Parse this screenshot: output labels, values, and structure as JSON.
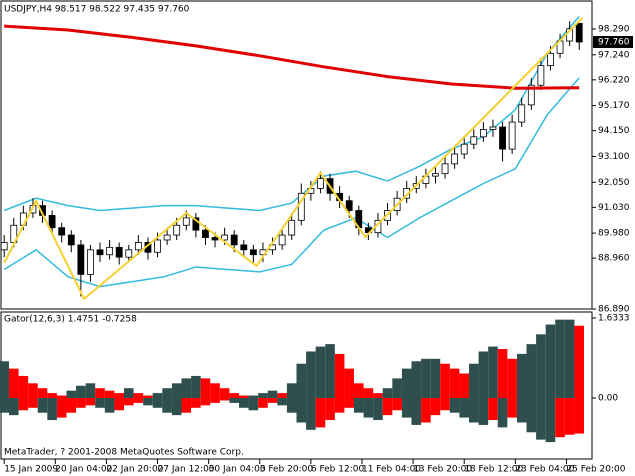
{
  "chart_data": [
    {
      "type": "candlestick",
      "title": "USDJPY,H4  98.517 98.522 97.435 97.760",
      "x": [
        0,
        3,
        6,
        9,
        12,
        15,
        18,
        21,
        24,
        27,
        30,
        33,
        36,
        39,
        42,
        45,
        48,
        51,
        54,
        57,
        60,
        63,
        66,
        69,
        72,
        75,
        78,
        81,
        84,
        87,
        90,
        93,
        96,
        99,
        102,
        105,
        108,
        111,
        114,
        117,
        120,
        123,
        126,
        129,
        132,
        135,
        138,
        141,
        144,
        147,
        150,
        153,
        156,
        159,
        162,
        165,
        168,
        171,
        174,
        177,
        180
      ],
      "open": [
        89.3,
        89.6,
        90.3,
        90.8,
        91.1,
        90.7,
        90.2,
        89.9,
        89.5,
        88.3,
        89.3,
        89.1,
        89.4,
        89.0,
        89.3,
        89.6,
        89.2,
        89.7,
        89.9,
        90.3,
        90.6,
        90.1,
        89.8,
        89.7,
        89.9,
        89.5,
        89.3,
        89.1,
        89.3,
        89.5,
        89.9,
        90.5,
        91.6,
        91.8,
        92.2,
        91.6,
        91.3,
        90.9,
        90.2,
        90.0,
        90.5,
        90.9,
        91.4,
        91.8,
        92.0,
        92.3,
        92.4,
        92.8,
        93.2,
        93.6,
        93.9,
        94.2,
        94.3,
        93.4,
        94.5,
        95.2,
        96.0,
        96.8,
        97.3,
        97.8,
        98.517
      ],
      "high": [
        89.9,
        90.6,
        91.1,
        91.4,
        91.3,
        90.9,
        90.4,
        90.1,
        89.7,
        89.5,
        89.6,
        89.7,
        89.6,
        89.5,
        89.9,
        89.8,
        90.0,
        90.2,
        90.6,
        90.9,
        90.8,
        90.3,
        90.0,
        90.2,
        90.1,
        89.7,
        89.5,
        89.6,
        89.8,
        90.2,
        90.8,
        92.0,
        92.1,
        92.5,
        92.4,
        91.9,
        91.5,
        91.1,
        90.4,
        90.8,
        91.2,
        91.7,
        92.1,
        92.3,
        92.6,
        92.7,
        93.1,
        93.5,
        93.9,
        94.2,
        94.5,
        94.6,
        94.5,
        94.8,
        95.5,
        96.3,
        97.1,
        97.6,
        98.1,
        98.6,
        98.522
      ],
      "low": [
        89.0,
        89.4,
        90.1,
        90.6,
        90.4,
        89.9,
        89.6,
        89.2,
        87.4,
        88.0,
        88.8,
        88.9,
        88.7,
        88.8,
        89.1,
        88.9,
        89.0,
        89.5,
        89.7,
        90.1,
        89.8,
        89.5,
        89.4,
        89.5,
        89.2,
        89.0,
        88.7,
        88.8,
        89.1,
        89.3,
        89.7,
        90.3,
        91.3,
        91.6,
        91.3,
        91.0,
        90.6,
        89.9,
        89.7,
        89.8,
        90.3,
        90.7,
        91.2,
        91.6,
        91.8,
        92.0,
        92.2,
        92.6,
        93.0,
        93.4,
        93.7,
        93.9,
        92.9,
        93.2,
        94.3,
        95.0,
        95.8,
        96.6,
        97.1,
        97.6,
        97.435
      ],
      "close": [
        89.6,
        90.3,
        90.8,
        91.1,
        90.7,
        90.2,
        89.9,
        89.5,
        88.3,
        89.3,
        89.1,
        89.4,
        89.0,
        89.3,
        89.6,
        89.2,
        89.7,
        89.9,
        90.3,
        90.6,
        90.1,
        89.8,
        89.7,
        89.9,
        89.5,
        89.3,
        89.1,
        89.3,
        89.5,
        89.9,
        90.5,
        91.6,
        91.8,
        92.2,
        91.6,
        91.3,
        90.9,
        90.2,
        90.0,
        90.5,
        90.9,
        91.4,
        91.8,
        92.0,
        92.3,
        92.4,
        92.8,
        93.2,
        93.6,
        93.9,
        94.2,
        94.3,
        93.4,
        94.5,
        95.2,
        96.0,
        96.8,
        97.3,
        97.8,
        98.3,
        97.76
      ],
      "candle_colors": {
        "up": "#ffffff",
        "down": "#000000",
        "wick": "#000000"
      },
      "moving_average": {
        "color": "#e00000",
        "x": [
          0,
          20,
          40,
          60,
          80,
          100,
          120,
          140,
          160,
          180
        ],
        "values": [
          98.41,
          98.25,
          97.95,
          97.6,
          97.2,
          96.75,
          96.35,
          96.05,
          95.88,
          95.9
        ]
      },
      "envelope_upper": {
        "color": "#33bbdd",
        "x": [
          0,
          10,
          20,
          30,
          40,
          50,
          60,
          70,
          80,
          90,
          100,
          110,
          120,
          130,
          140,
          150,
          160,
          170,
          180
        ],
        "values": [
          90.9,
          91.4,
          91.1,
          90.9,
          91.0,
          91.1,
          91.1,
          91.0,
          90.9,
          91.2,
          92.3,
          92.5,
          92.1,
          92.7,
          93.4,
          93.9,
          95.0,
          97.3,
          98.8
        ]
      },
      "envelope_lower": {
        "color": "#33bbdd",
        "x": [
          0,
          10,
          20,
          30,
          40,
          50,
          60,
          70,
          80,
          90,
          100,
          110,
          120,
          130,
          140,
          150,
          160,
          170,
          180
        ],
        "values": [
          88.5,
          89.3,
          88.2,
          87.8,
          88.0,
          88.2,
          88.6,
          88.5,
          88.4,
          88.7,
          90.1,
          90.6,
          89.8,
          90.6,
          91.3,
          92.0,
          92.6,
          94.8,
          96.3
        ]
      },
      "zigzag": {
        "color": "#f5d130",
        "x": [
          0,
          10,
          25,
          57,
          79,
          99,
          113,
          181
        ],
        "values": [
          88.77,
          91.29,
          87.3,
          90.8,
          88.64,
          92.43,
          89.82,
          98.74
        ]
      },
      "last_price": {
        "value": 97.76,
        "label": "97.760"
      },
      "xlim": [
        -1,
        184
      ],
      "xticks": [
        {
          "value": 0,
          "label": "15 Jan 2009"
        },
        {
          "value": 16,
          "label": "20 Jan 04:00"
        },
        {
          "value": 32,
          "label": "22 Jan 20:00"
        },
        {
          "value": 48,
          "label": "27 Jan 12:00"
        },
        {
          "value": 64,
          "label": "30 Jan 04:00"
        },
        {
          "value": 80,
          "label": "3 Feb 20:00"
        },
        {
          "value": 96,
          "label": "6 Feb 12:00"
        },
        {
          "value": 112,
          "label": "11 Feb 04:00"
        },
        {
          "value": 128,
          "label": "13 Feb 20:00"
        },
        {
          "value": 144,
          "label": "18 Feb 12:00"
        },
        {
          "value": 160,
          "label": "23 Feb 04:00"
        },
        {
          "value": 176,
          "label": "25 Feb 20:00"
        }
      ],
      "ylim": [
        86.89,
        99.43
      ],
      "yticks": [
        {
          "value": 98.29,
          "label": "98.290"
        },
        {
          "value": 97.24,
          "label": "97.240"
        },
        {
          "value": 96.22,
          "label": "96.220"
        },
        {
          "value": 95.17,
          "label": "95.170"
        },
        {
          "value": 94.15,
          "label": "94.150"
        },
        {
          "value": 93.1,
          "label": "93.100"
        },
        {
          "value": 92.05,
          "label": "92.050"
        },
        {
          "value": 91.03,
          "label": "91.030"
        },
        {
          "value": 89.98,
          "label": "89.980"
        },
        {
          "value": 88.96,
          "label": "88.960"
        },
        {
          "value": 86.89,
          "label": "86.890"
        }
      ]
    },
    {
      "type": "gator",
      "title": "Gator(12,6,3) 1.4751 -0.7258",
      "footer": "MetaTrader, ? 2001-2008 MetaQuotes Software Corp.",
      "x": [
        0,
        3,
        6,
        9,
        12,
        15,
        18,
        21,
        24,
        27,
        30,
        33,
        36,
        39,
        42,
        45,
        48,
        51,
        54,
        57,
        60,
        63,
        66,
        69,
        72,
        75,
        78,
        81,
        84,
        87,
        90,
        93,
        96,
        99,
        102,
        105,
        108,
        111,
        114,
        117,
        120,
        123,
        126,
        129,
        132,
        135,
        138,
        141,
        144,
        147,
        150,
        153,
        156,
        159,
        162,
        165,
        168,
        171,
        174,
        177,
        180
      ],
      "upper": [
        0.75,
        0.6,
        0.45,
        0.3,
        0.2,
        0.1,
        0.05,
        0.15,
        0.25,
        0.3,
        0.2,
        0.15,
        0.1,
        0.2,
        0.1,
        0.05,
        0.1,
        0.2,
        0.3,
        0.4,
        0.45,
        0.4,
        0.3,
        0.2,
        0.1,
        0.05,
        0.05,
        0.1,
        0.15,
        0.1,
        0.3,
        0.7,
        0.95,
        1.05,
        1.1,
        0.9,
        0.6,
        0.3,
        0.2,
        0.1,
        0.2,
        0.4,
        0.6,
        0.75,
        0.8,
        0.8,
        0.7,
        0.6,
        0.5,
        0.7,
        0.95,
        1.05,
        1.0,
        0.8,
        0.9,
        1.1,
        1.3,
        1.5,
        1.6,
        1.6,
        1.4751
      ],
      "lower": [
        -0.3,
        -0.35,
        -0.25,
        -0.2,
        -0.3,
        -0.45,
        -0.4,
        -0.3,
        -0.2,
        -0.15,
        -0.2,
        -0.3,
        -0.25,
        -0.15,
        -0.1,
        -0.15,
        -0.2,
        -0.3,
        -0.35,
        -0.3,
        -0.2,
        -0.15,
        -0.1,
        -0.05,
        -0.1,
        -0.2,
        -0.25,
        -0.2,
        -0.1,
        -0.15,
        -0.3,
        -0.5,
        -0.65,
        -0.6,
        -0.45,
        -0.3,
        -0.2,
        -0.3,
        -0.4,
        -0.45,
        -0.35,
        -0.25,
        -0.4,
        -0.55,
        -0.5,
        -0.35,
        -0.25,
        -0.3,
        -0.4,
        -0.5,
        -0.55,
        -0.45,
        -0.6,
        -0.4,
        -0.5,
        -0.7,
        -0.85,
        -0.9,
        -0.8,
        -0.75,
        -0.7258
      ],
      "colors": {
        "up": "#2f4f4f",
        "down": "#ff0000"
      },
      "xlim": [
        -1,
        184
      ],
      "ylim": [
        -1.225,
        1.6333
      ],
      "yticks": [
        1.6333,
        {
          "value": 0,
          "label": "0.00"
        }
      ]
    }
  ]
}
